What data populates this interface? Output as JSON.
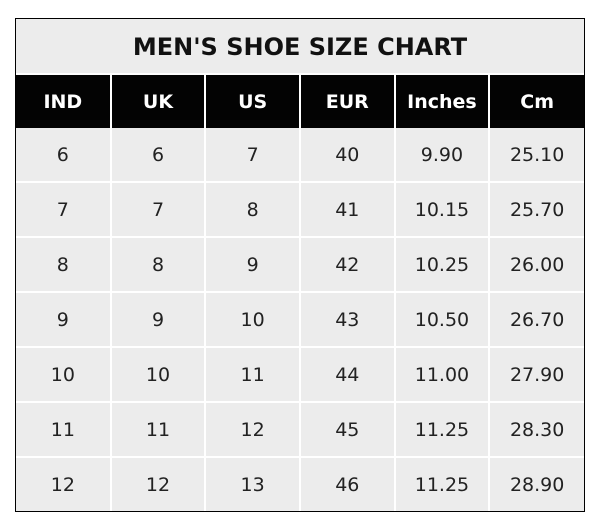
{
  "title": "MEN'S SHOE SIZE CHART",
  "headers": [
    "IND",
    "UK",
    "US",
    "EUR",
    "Inches",
    "Cm"
  ],
  "rows": [
    [
      "6",
      "6",
      "7",
      "40",
      "9.90",
      "25.10"
    ],
    [
      "7",
      "7",
      "8",
      "41",
      "10.15",
      "25.70"
    ],
    [
      "8",
      "8",
      "9",
      "42",
      "10.25",
      "26.00"
    ],
    [
      "9",
      "9",
      "10",
      "43",
      "10.50",
      "26.70"
    ],
    [
      "10",
      "10",
      "11",
      "44",
      "11.00",
      "27.90"
    ],
    [
      "11",
      "11",
      "12",
      "45",
      "11.25",
      "28.30"
    ],
    [
      "12",
      "12",
      "13",
      "46",
      "11.25",
      "28.90"
    ]
  ],
  "colors": {
    "header_bg": "#030303",
    "cell_bg": "#ececec",
    "grid": "#ffffff"
  }
}
